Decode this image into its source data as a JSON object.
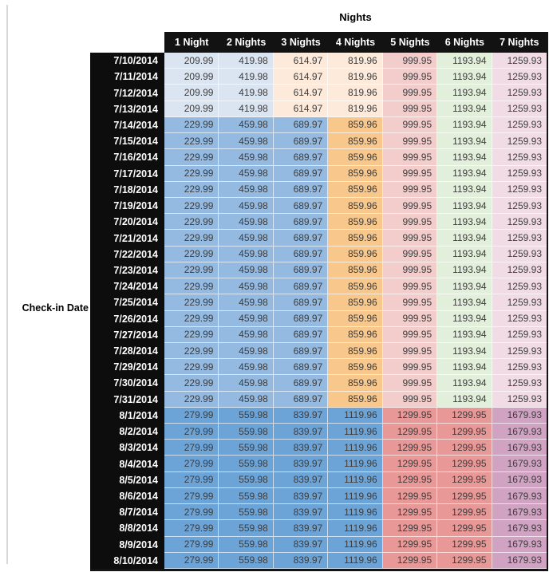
{
  "chart_data": {
    "type": "table",
    "title": "Nights",
    "row_axis_label": "Check-in Date",
    "columns": [
      "1 Night",
      "2 Nights",
      "3 Nights",
      "4 Nights",
      "5 Nights",
      "6 Nights",
      "7 Nights"
    ],
    "rows": [
      {
        "date": "7/10/2014",
        "band": "early",
        "values": [
          "209.99",
          "419.98",
          "614.97",
          "819.96",
          "999.95",
          "1193.94",
          "1259.93"
        ]
      },
      {
        "date": "7/11/2014",
        "band": "early",
        "values": [
          "209.99",
          "419.98",
          "614.97",
          "819.96",
          "999.95",
          "1193.94",
          "1259.93"
        ]
      },
      {
        "date": "7/12/2014",
        "band": "early",
        "values": [
          "209.99",
          "419.98",
          "614.97",
          "819.96",
          "999.95",
          "1193.94",
          "1259.93"
        ]
      },
      {
        "date": "7/13/2014",
        "band": "early",
        "values": [
          "209.99",
          "419.98",
          "614.97",
          "819.96",
          "999.95",
          "1193.94",
          "1259.93"
        ]
      },
      {
        "date": "7/14/2014",
        "band": "mid",
        "values": [
          "229.99",
          "459.98",
          "689.97",
          "859.96",
          "999.95",
          "1193.94",
          "1259.93"
        ]
      },
      {
        "date": "7/15/2014",
        "band": "mid",
        "values": [
          "229.99",
          "459.98",
          "689.97",
          "859.96",
          "999.95",
          "1193.94",
          "1259.93"
        ]
      },
      {
        "date": "7/16/2014",
        "band": "mid",
        "values": [
          "229.99",
          "459.98",
          "689.97",
          "859.96",
          "999.95",
          "1193.94",
          "1259.93"
        ]
      },
      {
        "date": "7/17/2014",
        "band": "mid",
        "values": [
          "229.99",
          "459.98",
          "689.97",
          "859.96",
          "999.95",
          "1193.94",
          "1259.93"
        ]
      },
      {
        "date": "7/18/2014",
        "band": "mid",
        "values": [
          "229.99",
          "459.98",
          "689.97",
          "859.96",
          "999.95",
          "1193.94",
          "1259.93"
        ]
      },
      {
        "date": "7/19/2014",
        "band": "mid",
        "values": [
          "229.99",
          "459.98",
          "689.97",
          "859.96",
          "999.95",
          "1193.94",
          "1259.93"
        ]
      },
      {
        "date": "7/20/2014",
        "band": "mid",
        "values": [
          "229.99",
          "459.98",
          "689.97",
          "859.96",
          "999.95",
          "1193.94",
          "1259.93"
        ]
      },
      {
        "date": "7/21/2014",
        "band": "mid",
        "values": [
          "229.99",
          "459.98",
          "689.97",
          "859.96",
          "999.95",
          "1193.94",
          "1259.93"
        ]
      },
      {
        "date": "7/22/2014",
        "band": "mid",
        "values": [
          "229.99",
          "459.98",
          "689.97",
          "859.96",
          "999.95",
          "1193.94",
          "1259.93"
        ]
      },
      {
        "date": "7/23/2014",
        "band": "mid",
        "values": [
          "229.99",
          "459.98",
          "689.97",
          "859.96",
          "999.95",
          "1193.94",
          "1259.93"
        ]
      },
      {
        "date": "7/24/2014",
        "band": "mid",
        "values": [
          "229.99",
          "459.98",
          "689.97",
          "859.96",
          "999.95",
          "1193.94",
          "1259.93"
        ]
      },
      {
        "date": "7/25/2014",
        "band": "mid",
        "values": [
          "229.99",
          "459.98",
          "689.97",
          "859.96",
          "999.95",
          "1193.94",
          "1259.93"
        ]
      },
      {
        "date": "7/26/2014",
        "band": "mid",
        "values": [
          "229.99",
          "459.98",
          "689.97",
          "859.96",
          "999.95",
          "1193.94",
          "1259.93"
        ]
      },
      {
        "date": "7/27/2014",
        "band": "mid",
        "values": [
          "229.99",
          "459.98",
          "689.97",
          "859.96",
          "999.95",
          "1193.94",
          "1259.93"
        ]
      },
      {
        "date": "7/28/2014",
        "band": "mid",
        "values": [
          "229.99",
          "459.98",
          "689.97",
          "859.96",
          "999.95",
          "1193.94",
          "1259.93"
        ]
      },
      {
        "date": "7/29/2014",
        "band": "mid",
        "values": [
          "229.99",
          "459.98",
          "689.97",
          "859.96",
          "999.95",
          "1193.94",
          "1259.93"
        ]
      },
      {
        "date": "7/30/2014",
        "band": "mid",
        "values": [
          "229.99",
          "459.98",
          "689.97",
          "859.96",
          "999.95",
          "1193.94",
          "1259.93"
        ]
      },
      {
        "date": "7/31/2014",
        "band": "mid",
        "values": [
          "229.99",
          "459.98",
          "689.97",
          "859.96",
          "999.95",
          "1193.94",
          "1259.93"
        ]
      },
      {
        "date": "8/1/2014",
        "band": "late",
        "values": [
          "279.99",
          "559.98",
          "839.97",
          "1119.96",
          "1299.95",
          "1299.95",
          "1679.93"
        ]
      },
      {
        "date": "8/2/2014",
        "band": "late",
        "values": [
          "279.99",
          "559.98",
          "839.97",
          "1119.96",
          "1299.95",
          "1299.95",
          "1679.93"
        ]
      },
      {
        "date": "8/3/2014",
        "band": "late",
        "values": [
          "279.99",
          "559.98",
          "839.97",
          "1119.96",
          "1299.95",
          "1299.95",
          "1679.93"
        ]
      },
      {
        "date": "8/4/2014",
        "band": "late",
        "values": [
          "279.99",
          "559.98",
          "839.97",
          "1119.96",
          "1299.95",
          "1299.95",
          "1679.93"
        ]
      },
      {
        "date": "8/5/2014",
        "band": "late",
        "values": [
          "279.99",
          "559.98",
          "839.97",
          "1119.96",
          "1299.95",
          "1299.95",
          "1679.93"
        ]
      },
      {
        "date": "8/6/2014",
        "band": "late",
        "values": [
          "279.99",
          "559.98",
          "839.97",
          "1119.96",
          "1299.95",
          "1299.95",
          "1679.93"
        ]
      },
      {
        "date": "8/7/2014",
        "band": "late",
        "values": [
          "279.99",
          "559.98",
          "839.97",
          "1119.96",
          "1299.95",
          "1299.95",
          "1679.93"
        ]
      },
      {
        "date": "8/8/2014",
        "band": "late",
        "values": [
          "279.99",
          "559.98",
          "839.97",
          "1119.96",
          "1299.95",
          "1299.95",
          "1679.93"
        ]
      },
      {
        "date": "8/9/2014",
        "band": "late",
        "values": [
          "279.99",
          "559.98",
          "839.97",
          "1119.96",
          "1299.95",
          "1299.95",
          "1679.93"
        ]
      },
      {
        "date": "8/10/2014",
        "band": "late",
        "values": [
          "279.99",
          "559.98",
          "839.97",
          "1119.96",
          "1299.95",
          "1299.95",
          "1679.93"
        ]
      }
    ],
    "band_colors": {
      "early": [
        "#dbe5f1",
        "#dbe5f1",
        "#fdeada",
        "#fdeada",
        "#f2cdcc",
        "#e2efda",
        "#f1dbe5"
      ],
      "mid": [
        "#94bae1",
        "#94bae1",
        "#94bae1",
        "#f8c78c",
        "#f2cdcc",
        "#e2efda",
        "#f1dbe5"
      ],
      "late": [
        "#6da4d8",
        "#6da4d8",
        "#6da4d8",
        "#6da4d8",
        "#e99898",
        "#e99898",
        "#d0a3c2"
      ]
    },
    "header_bg": "#121212",
    "header_text": "#ffffff",
    "value_text": "#3d3d3d"
  }
}
